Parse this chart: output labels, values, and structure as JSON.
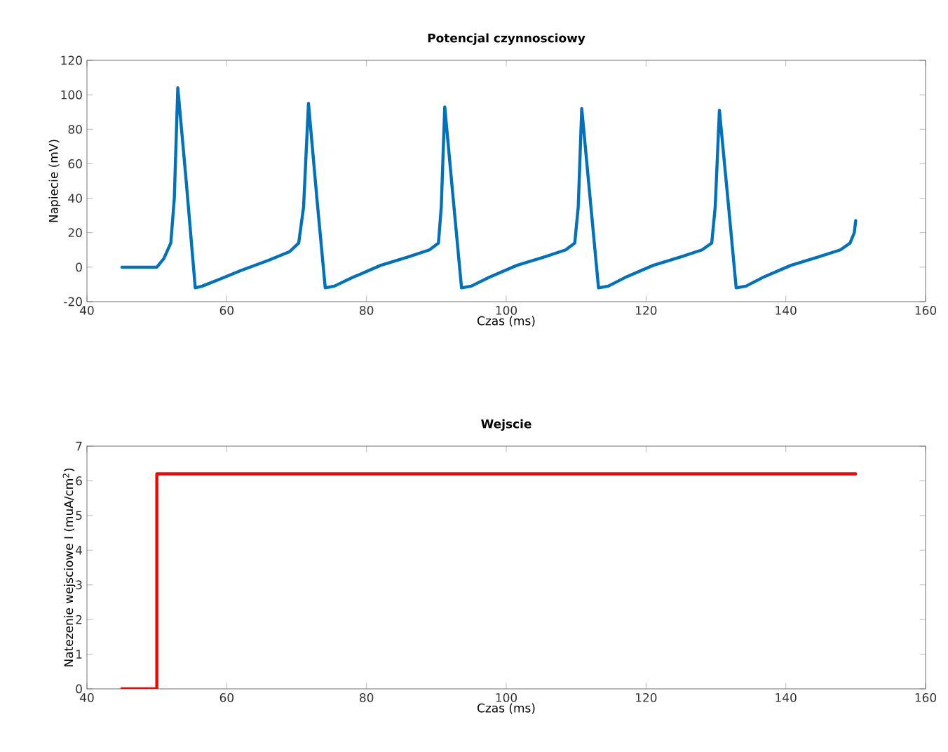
{
  "chart_data": [
    {
      "type": "line",
      "title": "Potencjal czynnosciowy",
      "xlabel": "Czas (ms)",
      "ylabel": "Napiecie (mV)",
      "x": [
        45,
        50,
        51,
        52,
        52.5,
        53,
        54.2,
        55.5,
        56.5,
        59,
        62,
        66,
        69,
        70.3,
        71,
        71.7,
        72.9,
        74.1,
        75.4,
        78,
        82,
        86,
        89,
        90.3,
        90.7,
        91.2,
        92.4,
        93.6,
        95,
        97.5,
        101.5,
        105.5,
        108.5,
        109.8,
        110.3,
        110.8,
        112,
        113.2,
        114.6,
        117,
        121,
        125,
        128,
        129.4,
        129.9,
        130.5,
        131.7,
        132.9,
        134.3,
        136.7,
        140.7,
        144.7,
        147.8,
        149.2,
        149.8,
        150
      ],
      "series": [
        {
          "color": "#0072bd",
          "values": [
            0,
            0,
            5,
            14,
            40,
            104,
            50,
            -12,
            -11,
            -7,
            -2,
            4,
            9,
            14,
            35,
            95,
            40,
            -12,
            -11,
            -6,
            1,
            6,
            10,
            14,
            35,
            93,
            40,
            -12,
            -11,
            -6,
            1,
            6,
            10,
            14,
            35,
            92,
            40,
            -12,
            -11,
            -6,
            1,
            6,
            10,
            14,
            35,
            91,
            40,
            -12,
            -11,
            -6,
            1,
            6,
            10,
            14,
            20,
            27
          ]
        }
      ],
      "xlim": [
        40,
        160
      ],
      "ylim": [
        -20,
        120
      ],
      "xticks": [
        40,
        60,
        80,
        100,
        120,
        140,
        160
      ],
      "yticks": [
        -20,
        0,
        20,
        40,
        60,
        80,
        100,
        120
      ]
    },
    {
      "type": "step",
      "title": "Wejscie",
      "xlabel": "Czas (ms)",
      "ylabel": "Natezenie wejsciowe I (muA/cm$^{2}$)",
      "x": [
        45,
        50,
        150
      ],
      "series": [
        {
          "color": "#ff0000",
          "values": [
            0,
            6.2,
            6.2
          ]
        }
      ],
      "xlim": [
        40,
        160
      ],
      "ylim": [
        0,
        7
      ],
      "xticks": [
        40,
        60,
        80,
        100,
        120,
        140,
        160
      ],
      "yticks": [
        0,
        1,
        2,
        3,
        4,
        5,
        6,
        7
      ]
    }
  ]
}
